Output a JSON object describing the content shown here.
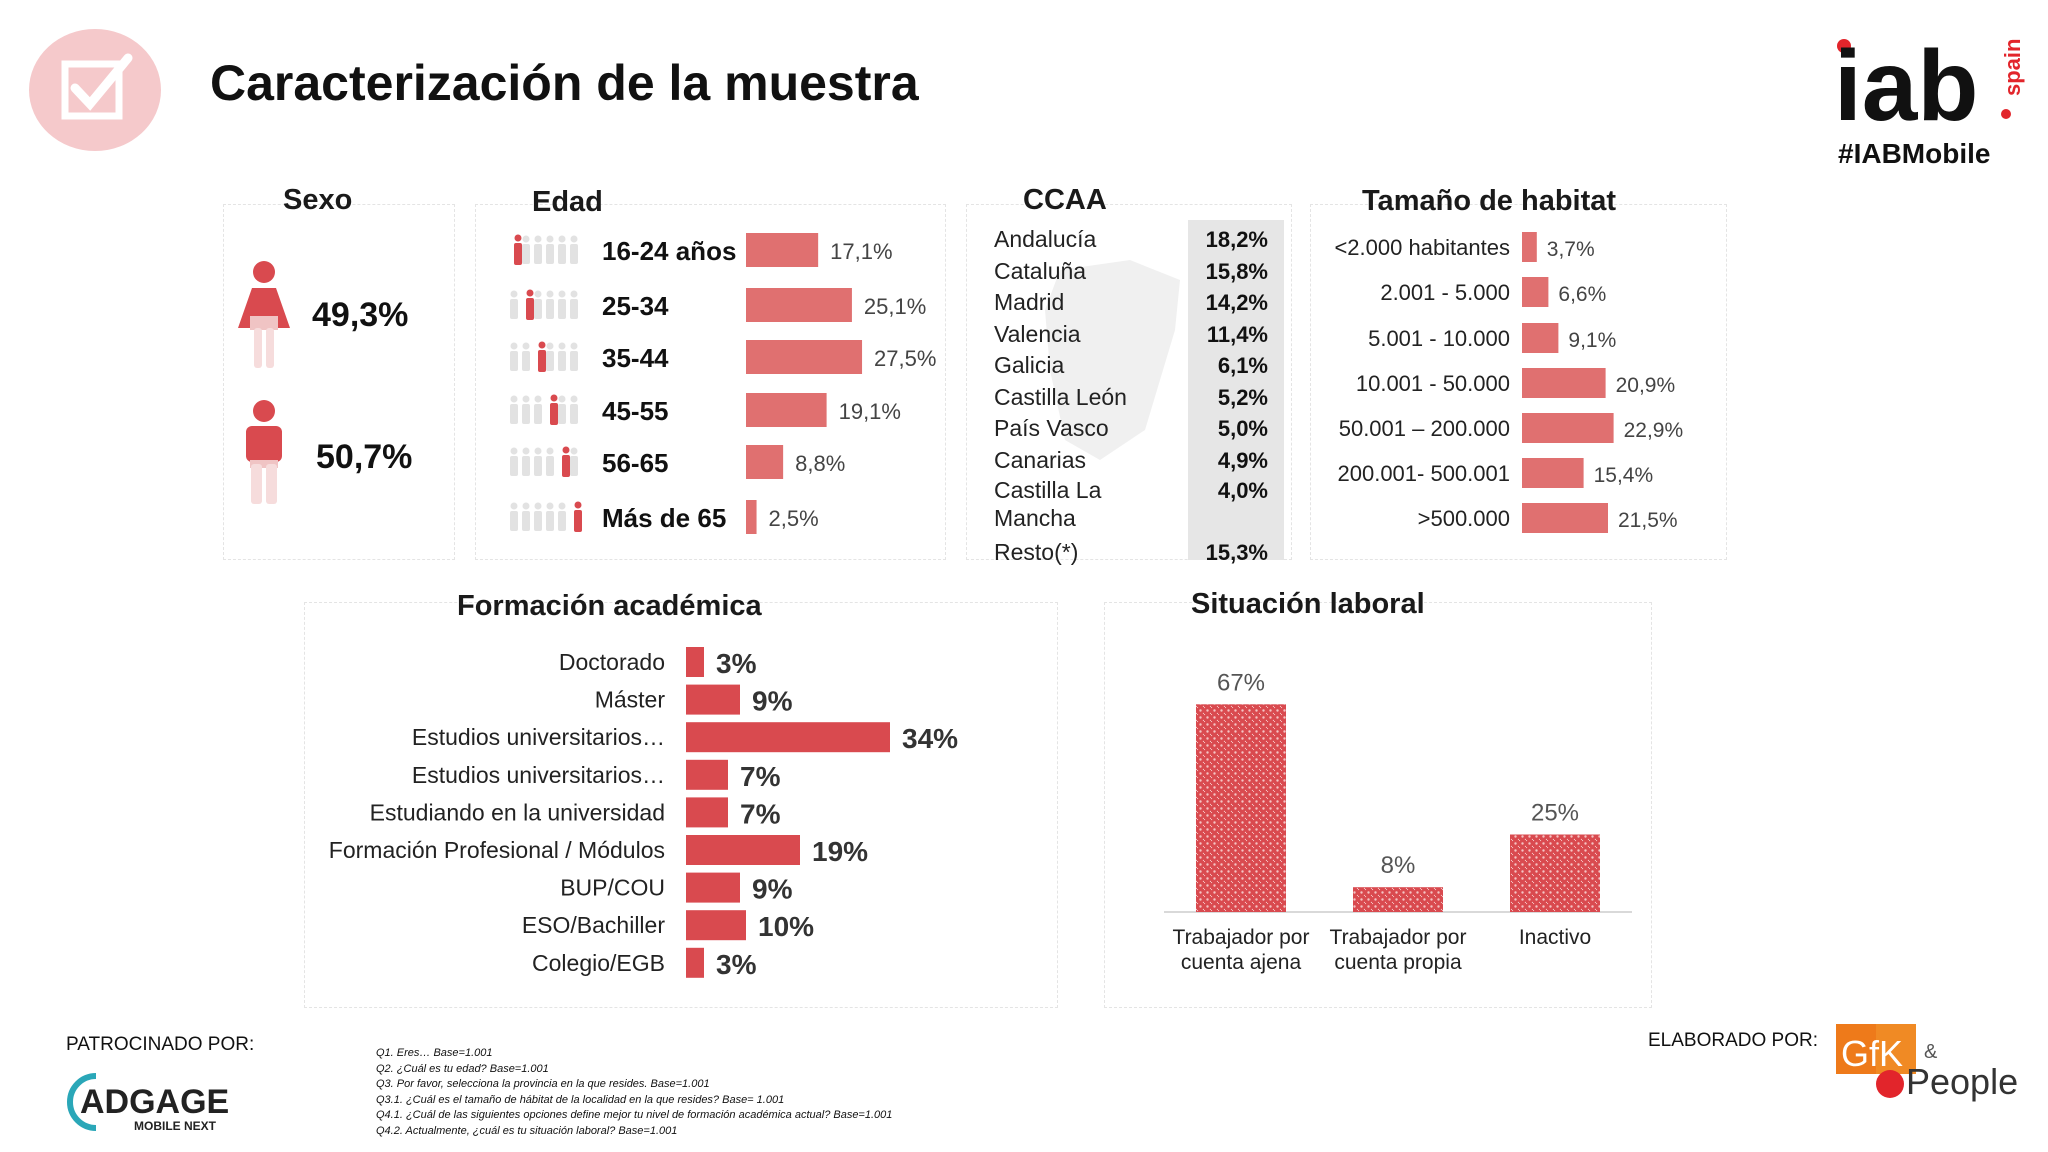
{
  "title": "Caracterización de la muestra",
  "brand": {
    "logo_text": "iab",
    "logo_sub": "spain",
    "hashtag": "#IABMobile"
  },
  "colors": {
    "accent": "#d94a4f",
    "bar_light": "#e07070",
    "check_bg": "#f5c9cb"
  },
  "icons": [
    "checkbox-icon",
    "female-icon",
    "male-icon",
    "people-row-icon"
  ],
  "chart_data": [
    {
      "type": "bar",
      "title": "Sexo",
      "categories": [
        "Mujer",
        "Hombre"
      ],
      "values": [
        49.3,
        50.7
      ],
      "labels": [
        "49,3%",
        "50,7%"
      ]
    },
    {
      "type": "bar",
      "title": "Edad",
      "categories": [
        "16-24 años",
        "25-34",
        "35-44",
        "45-55",
        "56-65",
        "Más de 65"
      ],
      "values": [
        17.1,
        25.1,
        27.5,
        19.1,
        8.8,
        2.5
      ],
      "labels": [
        "17,1%",
        "25,1%",
        "27,5%",
        "19,1%",
        "8,8%",
        "2,5%"
      ]
    },
    {
      "type": "table",
      "title": "CCAA",
      "categories": [
        "Andalucía",
        "Cataluña",
        "Madrid",
        "Valencia",
        "Galicia",
        "Castilla León",
        "País Vasco",
        "Canarias",
        "Castilla La Mancha",
        "Resto(*)"
      ],
      "values": [
        18.2,
        15.8,
        14.2,
        11.4,
        6.1,
        5.2,
        5.0,
        4.9,
        4.0,
        15.3
      ],
      "labels": [
        "18,2%",
        "15,8%",
        "14,2%",
        "11,4%",
        "6,1%",
        "5,2%",
        "5,0%",
        "4,9%",
        "4,0%",
        "15,3%"
      ]
    },
    {
      "type": "bar",
      "title": "Tamaño de habitat",
      "categories": [
        "<2.000 habitantes",
        "2.001 - 5.000",
        "5.001 - 10.000",
        "10.001 - 50.000",
        "50.001 – 200.000",
        "200.001- 500.001",
        ">500.000"
      ],
      "values": [
        3.7,
        6.6,
        9.1,
        20.9,
        22.9,
        15.4,
        21.5
      ],
      "labels": [
        "3,7%",
        "6,6%",
        "9,1%",
        "20,9%",
        "22,9%",
        "15,4%",
        "21,5%"
      ]
    },
    {
      "type": "bar",
      "title": "Formación académica",
      "categories": [
        "Doctorado",
        "Máster",
        "Estudios universitarios…",
        "Estudios universitarios…",
        "Estudiando en la universidad",
        "Formación Profesional / Módulos",
        "BUP/COU",
        "ESO/Bachiller",
        "Colegio/EGB"
      ],
      "values": [
        3,
        9,
        34,
        7,
        7,
        19,
        9,
        10,
        3
      ],
      "labels": [
        "3%",
        "9%",
        "34%",
        "7%",
        "7%",
        "19%",
        "9%",
        "10%",
        "3%"
      ]
    },
    {
      "type": "bar",
      "title": "Situación laboral",
      "categories": [
        "Trabajador por cuenta ajena",
        "Trabajador por cuenta propia",
        "Inactivo"
      ],
      "category_lines": [
        [
          "Trabajador por",
          "cuenta ajena"
        ],
        [
          "Trabajador por",
          "cuenta propia"
        ],
        [
          "Inactivo"
        ]
      ],
      "values": [
        67,
        8,
        25
      ],
      "labels": [
        "67%",
        "8%",
        "25%"
      ]
    }
  ],
  "footer": {
    "sponsor_label": "PATROCINADO POR:",
    "sponsor_logo": "ADGAGE",
    "sponsor_logo_sub": "MOBILE NEXT",
    "made_by_label": "ELABORADO POR:",
    "made_by_logo_1": "GfK",
    "made_by_amp": "&",
    "made_by_logo_2": "People",
    "notes": [
      "Q1. Eres… Base=1.001",
      "Q2. ¿Cuál es tu edad? Base=1.001",
      "Q3. Por favor, selecciona la provincia en la que resides. Base=1.001",
      "Q3.1. ¿Cuál es el tamaño de hábitat de la localidad en la que resides? Base= 1.001",
      "Q4.1. ¿Cuál de las siguientes opciones define mejor tu nivel de formación académica actual? Base=1.001",
      "Q4.2. Actualmente, ¿cuál es tu situación laboral? Base=1.001"
    ]
  }
}
